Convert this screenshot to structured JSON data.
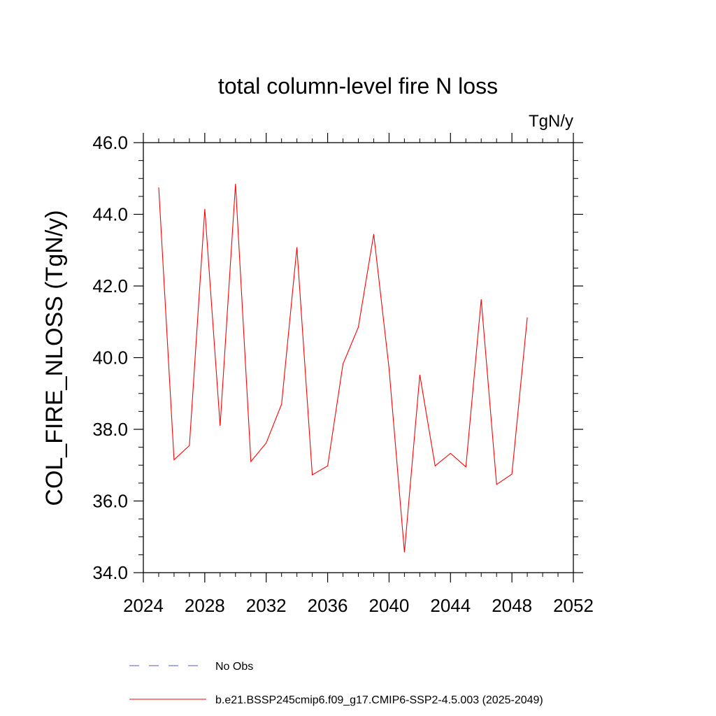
{
  "chart_data": {
    "type": "line",
    "title": "total column-level fire N loss",
    "units": "TgN/y",
    "ylabel": "COL_FIRE_NLOSS  (TgN/y)",
    "xlabel": "",
    "xlim": [
      2024,
      2052
    ],
    "ylim": [
      34.0,
      46.0
    ],
    "x_ticks": [
      2024,
      2028,
      2032,
      2036,
      2040,
      2044,
      2048,
      2052
    ],
    "y_ticks": [
      "34.0",
      "36.0",
      "38.0",
      "40.0",
      "42.0",
      "44.0",
      "46.0"
    ],
    "x": [
      2025,
      2026,
      2027,
      2028,
      2029,
      2030,
      2031,
      2032,
      2033,
      2034,
      2035,
      2036,
      2037,
      2038,
      2039,
      2040,
      2041,
      2042,
      2043,
      2044,
      2045,
      2046,
      2047,
      2048,
      2049
    ],
    "series": [
      {
        "name": "b.e21.BSSP245cmip6.f09_g17.CMIP6-SSP2-4.5.003 (2025-2049)",
        "color": "#ff0000",
        "style": "solid",
        "values": [
          44.75,
          37.15,
          37.55,
          44.15,
          38.1,
          44.85,
          37.1,
          37.62,
          38.7,
          43.08,
          36.73,
          36.98,
          39.82,
          40.85,
          43.45,
          39.7,
          34.57,
          39.52,
          36.98,
          37.33,
          36.95,
          41.63,
          36.46,
          36.75,
          41.12
        ]
      }
    ],
    "legend": {
      "placement": "bottom",
      "entries": [
        {
          "label": "No Obs",
          "color": "#5555cc",
          "style": "dashed"
        },
        {
          "label": "b.e21.BSSP245cmip6.f09_g17.CMIP6-SSP2-4.5.003 (2025-2049)",
          "color": "#ff0000",
          "style": "solid"
        }
      ]
    },
    "grid": false
  }
}
